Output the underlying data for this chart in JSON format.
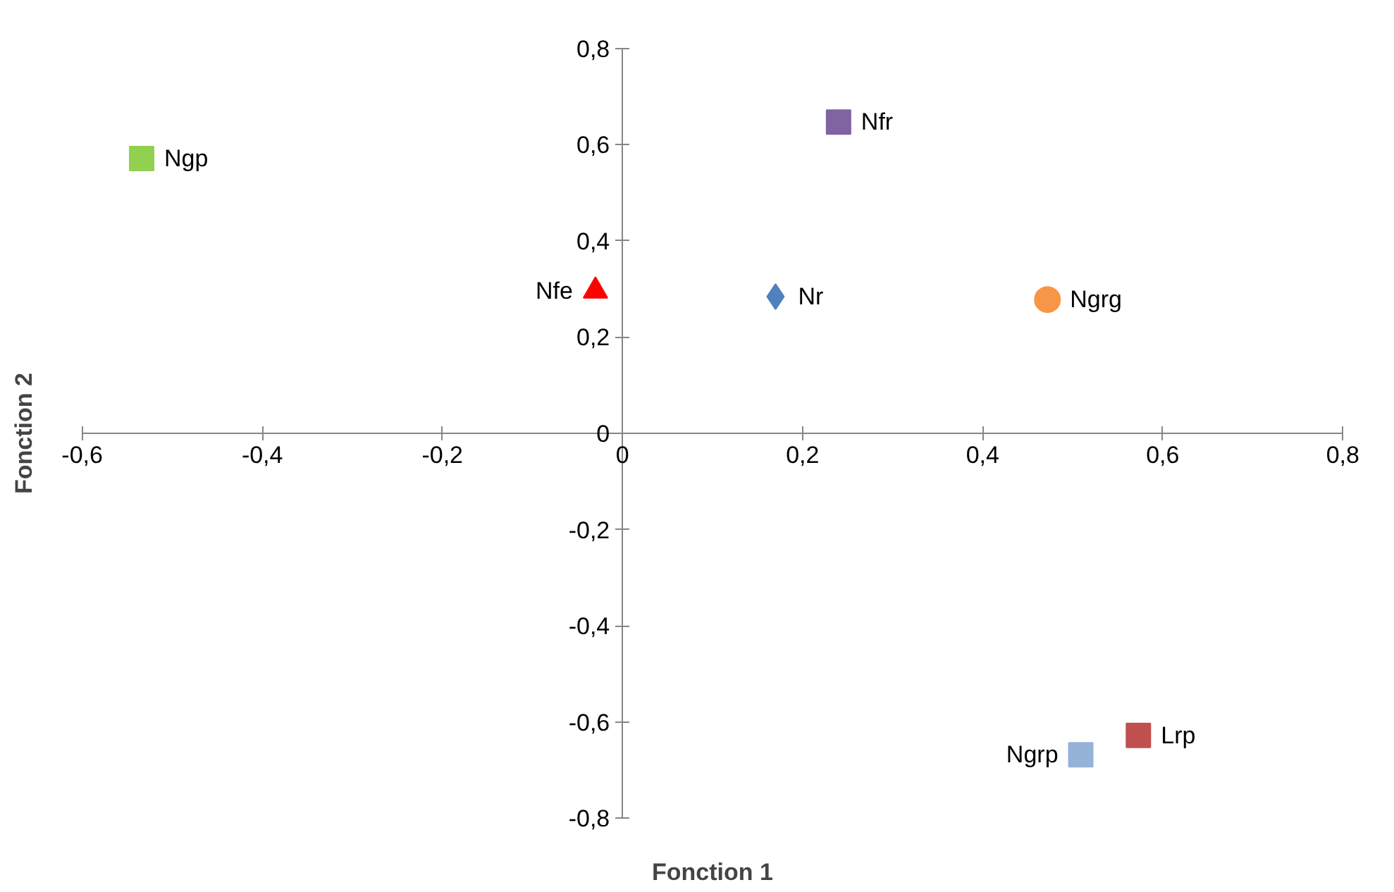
{
  "chart_data": {
    "type": "scatter",
    "xlabel": "Fonction 1",
    "ylabel": "Fonction 2",
    "xlim": [
      -0.6,
      0.8
    ],
    "ylim": [
      -0.8,
      0.8
    ],
    "xticks": [
      {
        "value": -0.6,
        "label": "-0,6"
      },
      {
        "value": -0.4,
        "label": "-0,4"
      },
      {
        "value": -0.2,
        "label": "-0,2"
      },
      {
        "value": 0,
        "label": "0"
      },
      {
        "value": 0.2,
        "label": "0,2"
      },
      {
        "value": 0.4,
        "label": "0,4"
      },
      {
        "value": 0.6,
        "label": "0,6"
      },
      {
        "value": 0.8,
        "label": "0,8"
      }
    ],
    "yticks": [
      {
        "value": -0.8,
        "label": "-0,8"
      },
      {
        "value": -0.6,
        "label": "-0,6"
      },
      {
        "value": -0.4,
        "label": "-0,4"
      },
      {
        "value": -0.2,
        "label": "-0,2"
      },
      {
        "value": 0,
        "label": "0"
      },
      {
        "value": 0.2,
        "label": "0,2"
      },
      {
        "value": 0.4,
        "label": "0,4"
      },
      {
        "value": 0.6,
        "label": "0,6"
      },
      {
        "value": 0.8,
        "label": "0,8"
      }
    ],
    "grid": false,
    "legend": false,
    "series": [
      {
        "name": "Ngp",
        "color": "#92d050",
        "marker": "square",
        "x": [
          -0.534
        ],
        "values": [
          0.571
        ]
      },
      {
        "name": "Nfr",
        "color": "#8064a2",
        "marker": "square",
        "x": [
          0.24
        ],
        "values": [
          0.647
        ]
      },
      {
        "name": "Nfe",
        "color": "#ff0000",
        "marker": "triangle",
        "x": [
          -0.03
        ],
        "values": [
          0.296
        ]
      },
      {
        "name": "Nr",
        "color": "#4f81bd",
        "marker": "diamond",
        "x": [
          0.17
        ],
        "values": [
          0.284
        ]
      },
      {
        "name": "Ngrg",
        "color": "#f79646",
        "marker": "circle",
        "x": [
          0.472
        ],
        "values": [
          0.278
        ]
      },
      {
        "name": "Ngrp",
        "color": "#95b3d7",
        "marker": "square",
        "x": [
          0.509
        ],
        "values": [
          -0.668
        ]
      },
      {
        "name": "Lrp",
        "color": "#c0504d",
        "marker": "square",
        "x": [
          0.573
        ],
        "values": [
          -0.628
        ]
      }
    ]
  }
}
